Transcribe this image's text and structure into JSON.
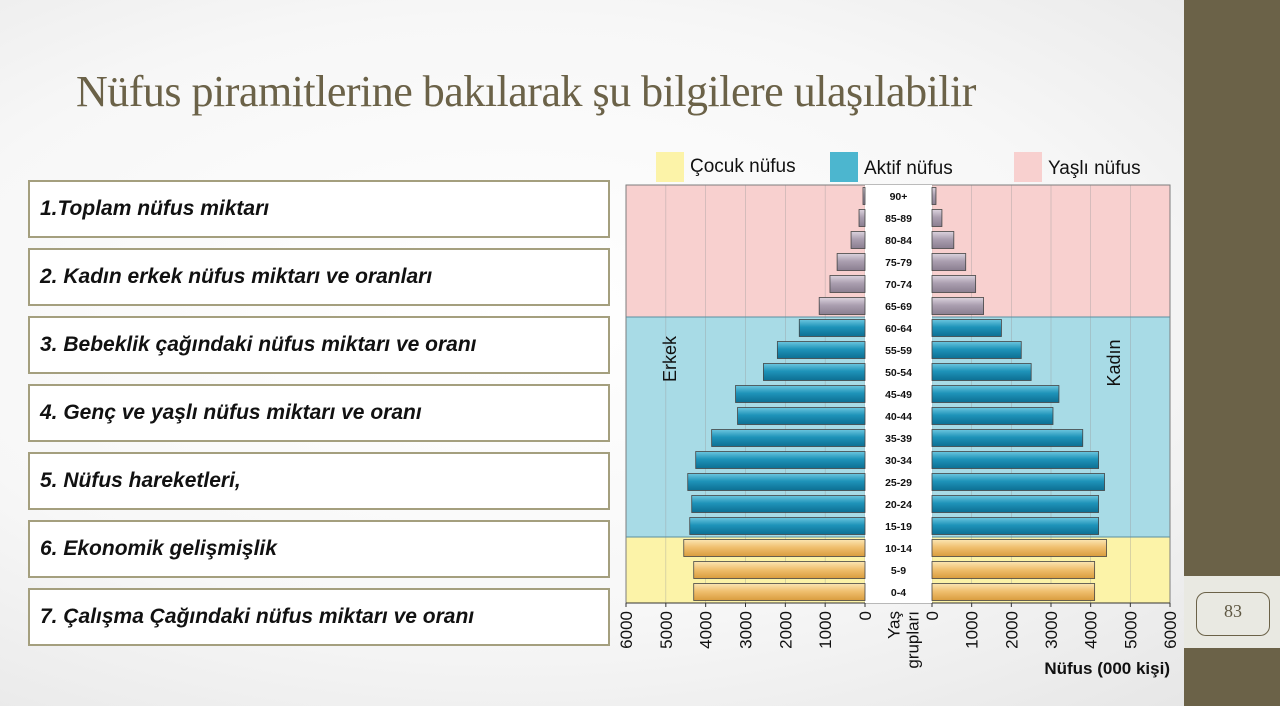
{
  "slide": {
    "title": "Nüfus piramitlerine bakılarak şu bilgilere ulaşılabilir",
    "page_number": "83",
    "items": [
      "1.Toplam nüfus miktarı",
      "2. Kadın erkek nüfus miktarı ve oranları",
      "3. Bebeklik çağındaki nüfus miktarı ve oranı",
      "4. Genç ve yaşlı nüfus miktarı ve oranı",
      "5. Nüfus hareketleri,",
      "6. Ekonomik gelişmişlik",
      "7. Çalışma Çağındaki nüfus miktarı ve oranı"
    ]
  },
  "colors": {
    "accent": "#6b6248",
    "box_border": "#a49f7e",
    "child_bg": "#fcf3a8",
    "active_bg": "#a8dbe6",
    "elderly_bg": "#f8d0cf",
    "child_bar": "#f2c878",
    "active_bar": "#1d8fb5",
    "elderly_bar": "#b2a6b6"
  },
  "chart_data": {
    "type": "bar",
    "orientation": "horizontal-pyramid",
    "legend": {
      "child": "Çocuk nüfus",
      "active": "Aktif nüfus",
      "elderly": "Yaşlı nüfus"
    },
    "male_label": "Erkek",
    "female_label": "Kadın",
    "age_axis_label": [
      "Yaş",
      "grupları"
    ],
    "xlabel": "Nüfus (000 kişi)",
    "xlim": [
      0,
      6000
    ],
    "ticks": [
      "6000",
      "5000",
      "4000",
      "3000",
      "2000",
      "1000",
      "0"
    ],
    "ticks_right": [
      "0",
      "1000",
      "2000",
      "3000",
      "4000",
      "5000",
      "6000"
    ],
    "categories": [
      "90+",
      "85-89",
      "80-84",
      "75-79",
      "70-74",
      "65-69",
      "60-64",
      "55-59",
      "50-54",
      "45-49",
      "40-44",
      "35-39",
      "30-34",
      "25-29",
      "20-24",
      "15-19",
      "10-14",
      "5-9",
      "0-4"
    ],
    "groups": [
      "elderly",
      "elderly",
      "elderly",
      "elderly",
      "elderly",
      "elderly",
      "active",
      "active",
      "active",
      "active",
      "active",
      "active",
      "active",
      "active",
      "active",
      "active",
      "child",
      "child",
      "child"
    ],
    "series": [
      {
        "name": "Erkek",
        "values": [
          50,
          150,
          350,
          700,
          880,
          1150,
          1650,
          2200,
          2550,
          3250,
          3200,
          3850,
          4250,
          4450,
          4350,
          4400,
          4550,
          4300,
          4300
        ]
      },
      {
        "name": "Kadın",
        "values": [
          100,
          250,
          550,
          850,
          1100,
          1300,
          1750,
          2250,
          2500,
          3200,
          3050,
          3800,
          4200,
          4350,
          4200,
          4200,
          4400,
          4100,
          4100
        ]
      }
    ],
    "grid": true
  }
}
